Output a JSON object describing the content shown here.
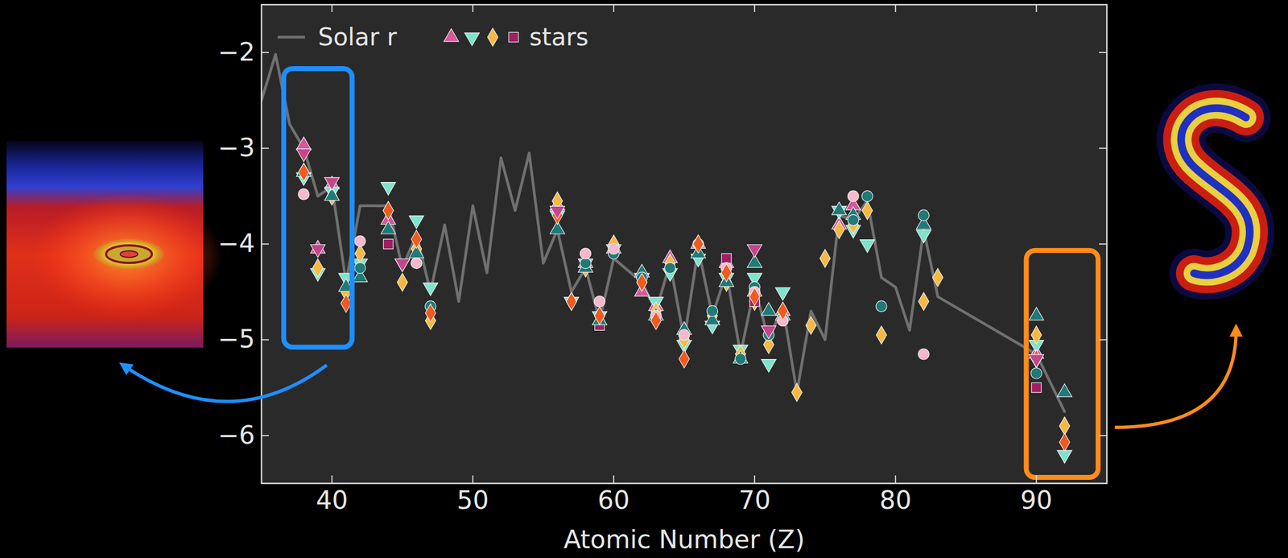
{
  "chart_data": {
    "type": "scatter",
    "x_label": "Atomic Number (Z)",
    "xlim": [
      35,
      95
    ],
    "xticks": [
      40,
      50,
      60,
      70,
      80,
      90
    ],
    "ylim": [
      -6.5,
      -1.5
    ],
    "yticks": [
      -6,
      -5,
      -4,
      -3,
      -2
    ],
    "grid": false,
    "legend": "upper left",
    "series": [
      {
        "name": "Solar r",
        "type": "line",
        "color": "#707070",
        "line_style": "solid",
        "x": [
          35,
          36,
          37,
          38,
          39,
          40,
          41,
          42,
          44,
          45,
          46,
          47,
          48,
          49,
          50,
          51,
          52,
          53,
          54,
          55,
          56,
          57,
          58,
          59,
          60,
          62,
          63,
          64,
          65,
          66,
          67,
          68,
          69,
          70,
          71,
          72,
          73,
          74,
          75,
          76,
          77,
          78,
          79,
          80,
          81,
          82,
          83,
          90,
          92
        ],
        "values": [
          -2.5,
          -2.02,
          -2.75,
          -3.0,
          -3.5,
          -3.4,
          -4.4,
          -3.6,
          -3.6,
          -4.25,
          -3.9,
          -4.5,
          -3.8,
          -4.6,
          -3.6,
          -4.3,
          -3.1,
          -3.65,
          -3.05,
          -4.2,
          -3.85,
          -4.5,
          -4.25,
          -4.8,
          -4.15,
          -4.4,
          -4.7,
          -4.2,
          -5.0,
          -4.05,
          -4.75,
          -4.3,
          -5.15,
          -4.45,
          -5.0,
          -4.65,
          -5.55,
          -4.7,
          -5.0,
          -3.7,
          -3.75,
          -3.55,
          -4.35,
          -4.45,
          -4.9,
          -3.85,
          -4.55,
          -5.15,
          -5.75
        ]
      },
      {
        "name": "stars",
        "type": "scatter",
        "marker": "triangle",
        "color": "#d6579a",
        "x": [
          38,
          39,
          40,
          44,
          56,
          58,
          60,
          62,
          63,
          64,
          66,
          68,
          70,
          72,
          76,
          77,
          90
        ],
        "values": [
          -2.97,
          -4.05,
          -3.38,
          -3.75,
          -3.6,
          -4.2,
          -4.05,
          -4.5,
          -4.65,
          -4.15,
          -4.0,
          -4.2,
          -4.5,
          -4.7,
          -3.8,
          -3.6,
          -5.15
        ]
      },
      {
        "name": "stars",
        "type": "scatter",
        "marker": "triangle-down",
        "color": "#7fe3ca",
        "x": [
          38,
          39,
          40,
          41,
          42,
          44,
          45,
          46,
          47,
          56,
          57,
          58,
          59,
          60,
          62,
          63,
          64,
          65,
          66,
          67,
          68,
          69,
          70,
          71,
          72,
          76,
          77,
          78,
          82,
          90,
          92
        ],
        "values": [
          -3.3,
          -4.3,
          -3.45,
          -4.35,
          -4.2,
          -3.4,
          -4.2,
          -3.75,
          -4.45,
          -3.7,
          -4.6,
          -4.2,
          -4.75,
          -4.05,
          -4.35,
          -4.6,
          -4.3,
          -5.05,
          -4.15,
          -4.85,
          -4.35,
          -5.1,
          -4.35,
          -5.25,
          -4.5,
          -3.65,
          -3.85,
          -4.0,
          -3.9,
          -5.05,
          -6.2
        ]
      },
      {
        "name": "stars",
        "type": "scatter",
        "marker": "diamond",
        "color": "#f5b942",
        "x": [
          38,
          39,
          40,
          41,
          42,
          44,
          45,
          46,
          47,
          56,
          57,
          58,
          59,
          60,
          62,
          63,
          64,
          65,
          66,
          67,
          68,
          69,
          70,
          71,
          72,
          73,
          74,
          75,
          76,
          77,
          78,
          79,
          82,
          83,
          90,
          92
        ],
        "values": [
          -3.25,
          -4.25,
          -3.5,
          -4.5,
          -4.1,
          -3.65,
          -4.4,
          -4.05,
          -4.8,
          -3.55,
          -4.6,
          -4.25,
          -4.75,
          -4.0,
          -4.4,
          -4.7,
          -4.2,
          -5.0,
          -4.0,
          -4.75,
          -4.4,
          -5.15,
          -4.6,
          -5.05,
          -4.75,
          -5.55,
          -4.85,
          -4.15,
          -3.85,
          -3.8,
          -3.65,
          -4.95,
          -4.6,
          -4.35,
          -4.95,
          -5.9
        ]
      },
      {
        "name": "stars",
        "type": "scatter",
        "marker": "square",
        "color": "#9e1f63",
        "x": [
          44,
          59,
          68,
          70,
          90
        ],
        "values": [
          -4.0,
          -4.85,
          -4.15,
          -4.6,
          -5.5
        ]
      },
      {
        "type": "scatter",
        "marker": "triangle",
        "color": "#1f7a78",
        "x": [
          38,
          40,
          41,
          42,
          44,
          46,
          56,
          58,
          59,
          62,
          63,
          65,
          66,
          67,
          68,
          69,
          70,
          71,
          72,
          76,
          77,
          82,
          90,
          92
        ],
        "values": [
          -3.25,
          -3.5,
          -4.45,
          -4.35,
          -3.85,
          -4.1,
          -3.85,
          -4.25,
          -4.8,
          -4.3,
          -4.75,
          -4.9,
          -4.1,
          -4.8,
          -4.4,
          -5.2,
          -4.2,
          -4.7,
          -4.75,
          -3.65,
          -3.7,
          -3.8,
          -4.75,
          -5.55
        ]
      },
      {
        "type": "scatter",
        "marker": "circle",
        "color": "#1f7a78",
        "x": [
          42,
          47,
          58,
          60,
          62,
          64,
          67,
          69,
          70,
          71,
          77,
          78,
          79,
          82,
          90
        ],
        "values": [
          -4.25,
          -4.65,
          -4.2,
          -4.1,
          -4.35,
          -4.25,
          -4.7,
          -5.2,
          -4.45,
          -4.95,
          -3.75,
          -3.5,
          -4.65,
          -3.7,
          -5.35
        ]
      },
      {
        "type": "scatter",
        "marker": "circle",
        "color": "#f5b8cc",
        "x": [
          38,
          42,
          46,
          58,
          59,
          60,
          63,
          65,
          66,
          68,
          70,
          72,
          77,
          82
        ],
        "values": [
          -3.48,
          -3.97,
          -4.2,
          -4.1,
          -4.6,
          -4.05,
          -4.75,
          -4.95,
          -4.0,
          -4.25,
          -4.5,
          -4.8,
          -3.5,
          -5.15
        ]
      },
      {
        "type": "scatter",
        "marker": "diamond",
        "color": "#f05a1e",
        "x": [
          38,
          41,
          44,
          46,
          47,
          56,
          57,
          59,
          62,
          63,
          65,
          66,
          68,
          70,
          72,
          90,
          92
        ],
        "values": [
          -3.25,
          -4.62,
          -3.65,
          -3.95,
          -4.72,
          -3.7,
          -4.6,
          -4.75,
          -4.4,
          -4.8,
          -5.2,
          -4.0,
          -4.3,
          -4.55,
          -4.7,
          -5.2,
          -6.07
        ]
      },
      {
        "type": "scatter",
        "marker": "triangle-down",
        "color": "#c4458a",
        "x": [
          38,
          39,
          40,
          45,
          56,
          70,
          71,
          90
        ],
        "values": [
          -3.05,
          -4.05,
          -3.35,
          -4.2,
          -3.65,
          -4.05,
          -4.9,
          -5.2
        ]
      }
    ],
    "highlight_regions": [
      {
        "xlim": [
          36.6,
          41.45
        ],
        "ylim": [
          -5.08,
          -2.17
        ],
        "color": "#1e8fff"
      },
      {
        "xlim": [
          89.3,
          94.4
        ],
        "ylim": [
          -6.44,
          -4.07
        ],
        "color": "#ff8c1a"
      }
    ]
  }
}
